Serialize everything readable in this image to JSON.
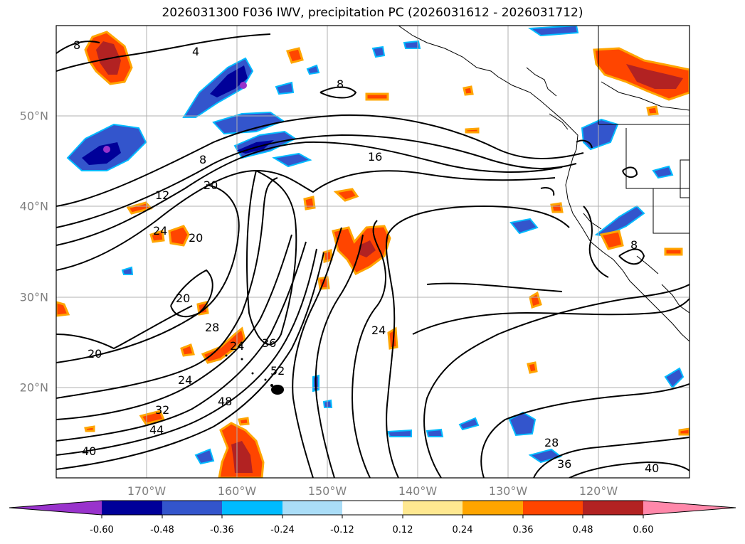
{
  "title": "2026031300 F036 IWV, precipitation PC (2026031612 - 2026031712)",
  "lat_labels": [
    "50°N",
    "40°N",
    "30°N",
    "20°N"
  ],
  "lon_labels": [
    "170°W",
    "160°W",
    "150°W",
    "140°W",
    "130°W",
    "120°W"
  ],
  "contour_labels": [
    "8",
    "4",
    "8",
    "8",
    "12",
    "16",
    "20",
    "24",
    "20",
    "20",
    "28",
    "20",
    "24",
    "36",
    "52",
    "48",
    "32",
    "44",
    "40",
    "24",
    "28",
    "36",
    "40",
    "8",
    "24"
  ],
  "colorbar": {
    "ticks": [
      "-0.60",
      "-0.48",
      "-0.36",
      "-0.24",
      "-0.12",
      "0.12",
      "0.24",
      "0.36",
      "0.48",
      "0.60"
    ],
    "colors": [
      "#9933cc",
      "#000099",
      "#3355cc",
      "#00bbff",
      "#aaddf7",
      "#ffffff",
      "#ffe890",
      "#ffa500",
      "#ff4500",
      "#b22222",
      "#ff88aa"
    ]
  }
}
